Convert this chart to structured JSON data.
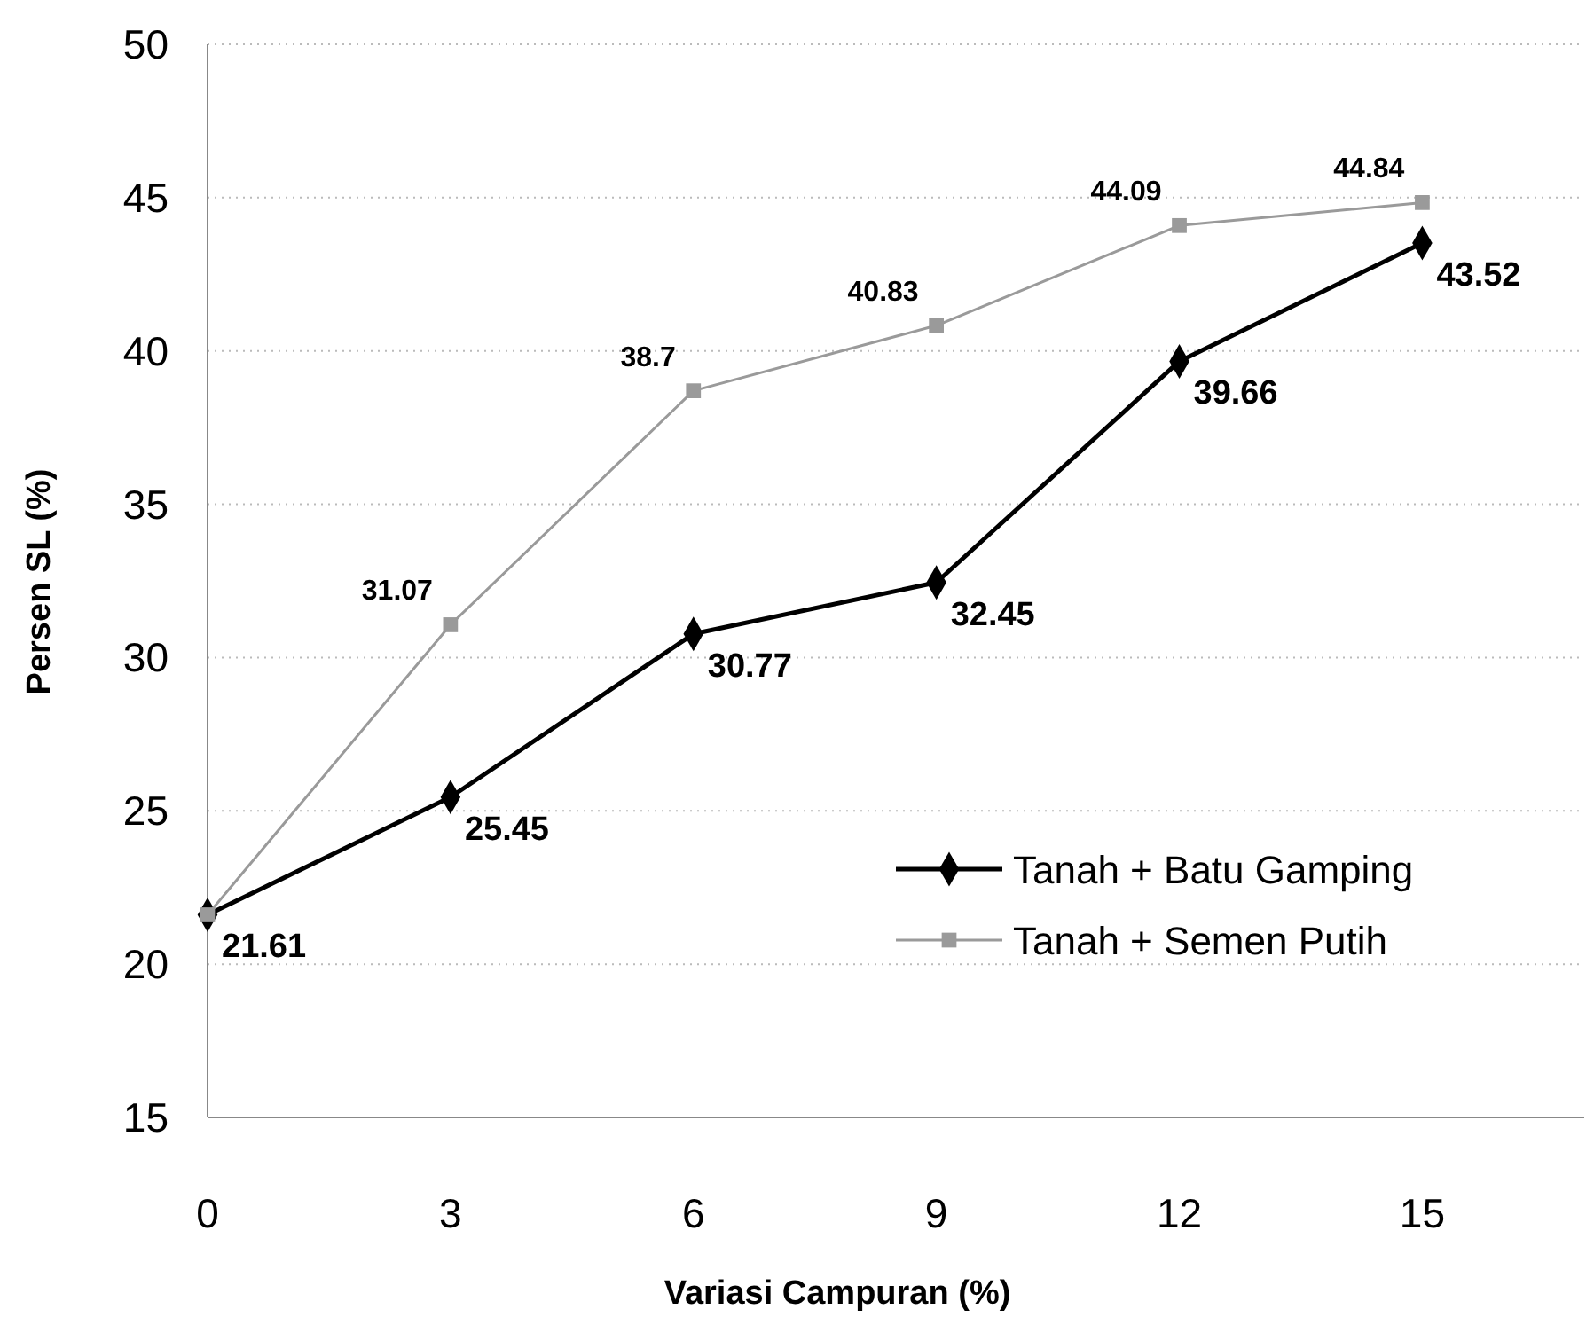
{
  "chart_data": {
    "type": "line",
    "xlabel": "Variasi Campuran (%)",
    "ylabel": "Persen SL (%)",
    "x": [
      0,
      3,
      6,
      9,
      12,
      15
    ],
    "series": [
      {
        "name": "Tanah + Batu Gamping",
        "color": "#000000",
        "marker": "diamond",
        "values": [
          21.61,
          25.45,
          30.77,
          32.45,
          39.66,
          43.52
        ],
        "value_labels": [
          "21.61",
          "25.45",
          "30.77",
          "32.45",
          "39.66",
          "43.52"
        ]
      },
      {
        "name": "Tanah + Semen Putih",
        "color": "#9a9a9a",
        "marker": "square",
        "values": [
          21.61,
          31.07,
          38.7,
          40.83,
          44.09,
          44.84
        ],
        "value_labels": [
          null,
          "31.07",
          "38.7",
          "40.83",
          "44.09",
          "44.84"
        ]
      }
    ],
    "xlim": [
      0,
      17
    ],
    "xticks": [
      0,
      3,
      6,
      9,
      12,
      15
    ],
    "ylim": [
      15,
      50
    ],
    "yticks": [
      15,
      20,
      25,
      30,
      35,
      40,
      45,
      50
    ],
    "grid": "y",
    "legend": "bottom right"
  }
}
